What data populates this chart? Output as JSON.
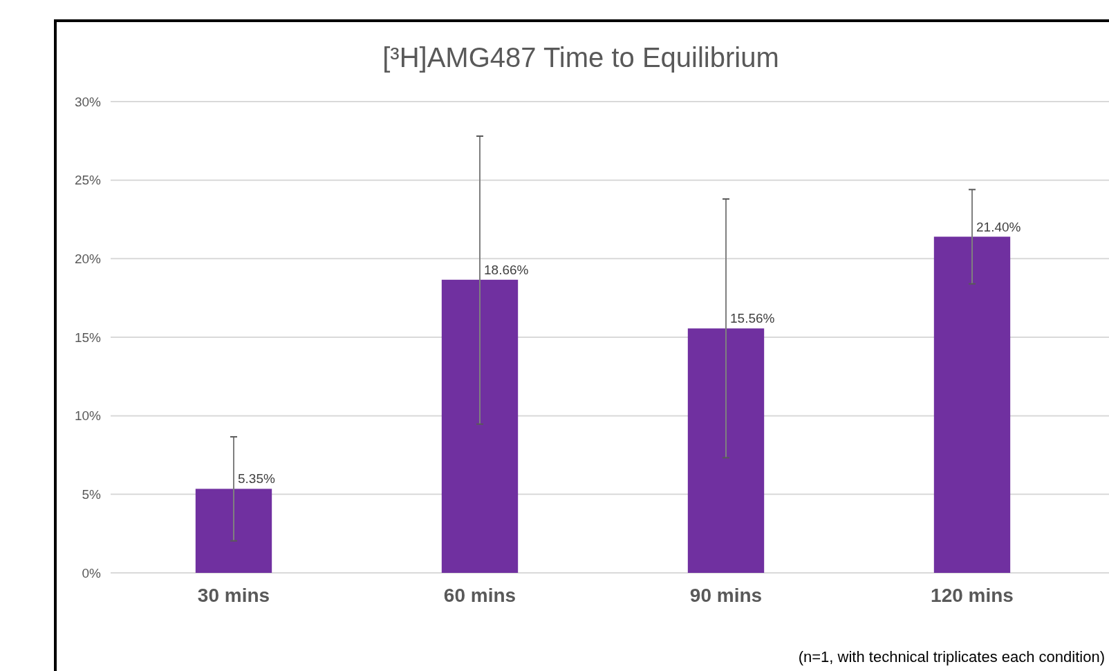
{
  "chart_data": {
    "type": "bar",
    "title": "[³H]AMG487 Time to Equilibrium",
    "categories": [
      "30 mins",
      "60 mins",
      "90 mins",
      "120 mins"
    ],
    "values": [
      5.35,
      18.66,
      15.56,
      21.4
    ],
    "value_labels": [
      "5.35%",
      "18.66%",
      "15.56%",
      "21.40%"
    ],
    "errors": [
      [
        2.04,
        8.66
      ],
      [
        9.47,
        27.8
      ],
      [
        7.33,
        23.8
      ],
      [
        18.4,
        24.4
      ]
    ],
    "color": "#7030a0",
    "ylim": [
      0,
      30
    ],
    "yticks": [
      {
        "value": 0,
        "label": "0%"
      },
      {
        "value": 5,
        "label": "5%"
      },
      {
        "value": 10,
        "label": "10%"
      },
      {
        "value": 15,
        "label": "15%"
      },
      {
        "value": 20,
        "label": "20%"
      },
      {
        "value": 25,
        "label": "25%"
      },
      {
        "value": 30,
        "label": "30%"
      }
    ],
    "grid": "y",
    "annotations": [
      "(n=1, with technical triplicates each condition)"
    ]
  }
}
